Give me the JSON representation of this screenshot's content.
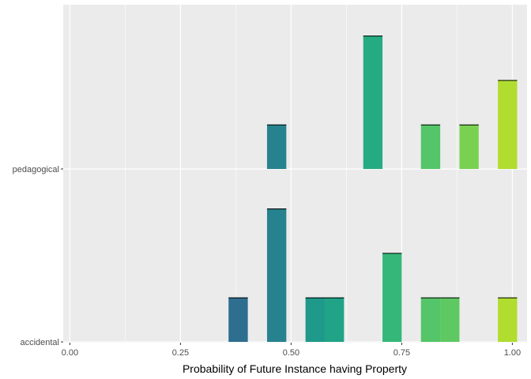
{
  "chart_data": {
    "type": "ridgeline-histogram",
    "title": "",
    "xlabel": "Probability of Future Instance having Property",
    "ylabel": "",
    "xlim": [
      -0.01,
      1.02
    ],
    "x_ticks": [
      0.0,
      0.25,
      0.5,
      0.75,
      1.0
    ],
    "x_tick_labels": [
      "0.00",
      "0.25",
      "0.50",
      "0.75",
      "1.00"
    ],
    "categories": [
      "accidental",
      "pedagogical"
    ],
    "grid": true,
    "legend": "none",
    "bin_width": 0.0435,
    "series": [
      {
        "category": "accidental",
        "bins": [
          {
            "x": 0.3804,
            "height": 1,
            "color": "#2e6e8e"
          },
          {
            "x": 0.4674,
            "height": 3,
            "color": "#26828e"
          },
          {
            "x": 0.5543,
            "height": 1,
            "color": "#1f998a"
          },
          {
            "x": 0.5978,
            "height": 1,
            "color": "#20a386"
          },
          {
            "x": 0.7283,
            "height": 2,
            "color": "#35b779"
          },
          {
            "x": 0.8152,
            "height": 1,
            "color": "#54c568"
          },
          {
            "x": 0.8587,
            "height": 1,
            "color": "#5ec962"
          },
          {
            "x": 0.9891,
            "height": 1,
            "color": "#b0dd2f"
          }
        ]
      },
      {
        "category": "pedagogical",
        "bins": [
          {
            "x": 0.4674,
            "height": 1,
            "color": "#26828e"
          },
          {
            "x": 0.6848,
            "height": 3,
            "color": "#25ab82"
          },
          {
            "x": 0.8152,
            "height": 1,
            "color": "#54c568"
          },
          {
            "x": 0.9022,
            "height": 1,
            "color": "#7ad151"
          },
          {
            "x": 0.9891,
            "height": 2,
            "color": "#b0dd2f"
          }
        ]
      }
    ]
  }
}
